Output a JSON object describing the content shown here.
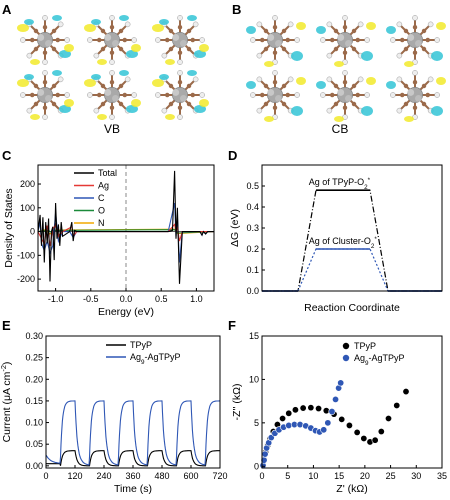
{
  "panels": {
    "A": {
      "label": "A",
      "caption": "VB"
    },
    "B": {
      "label": "B",
      "caption": "CB"
    },
    "C": {
      "label": "C"
    },
    "D": {
      "label": "D"
    },
    "E": {
      "label": "E"
    },
    "F": {
      "label": "F"
    }
  },
  "colors": {
    "black": "#000000",
    "red": "#e53935",
    "blue": "#2f57b5",
    "green": "#1b8a3a",
    "orange": "#f2a900",
    "yellow": "#f2ea2a",
    "cyan": "#33c4d6",
    "atom_c": "#9b6a4a",
    "atom_ag": "#a9a9a9"
  },
  "chart_data": [
    {
      "panel": "C",
      "type": "line",
      "xlabel": "Energy (eV)",
      "ylabel": "Density of States",
      "xlim": [
        -1.25,
        1.25
      ],
      "ylim": [
        -250,
        280
      ],
      "xticks": [
        -1.0,
        -0.5,
        0.0,
        0.5,
        1.0
      ],
      "xticklabels": [
        "-1.0",
        "-0.5",
        "0.0",
        "0.5",
        "1.0"
      ],
      "yticks": [
        -200,
        -100,
        0,
        100,
        200
      ],
      "yticklabels": [
        "-200",
        "-100",
        "0",
        "100",
        "200"
      ],
      "legend": [
        "Total",
        "Ag",
        "C",
        "O",
        "N"
      ],
      "fermi_level": 0.0,
      "series": [
        {
          "name": "Total",
          "color": "#000000",
          "x": [
            -1.25,
            -1.22,
            -1.2,
            -1.18,
            -1.16,
            -1.14,
            -1.12,
            -1.1,
            -1.08,
            -1.06,
            -1.04,
            -1.02,
            -1.0,
            -0.98,
            -0.96,
            -0.94,
            -0.92,
            -0.9,
            -0.8,
            -0.77,
            -0.75,
            -0.73,
            -0.7,
            0.6,
            0.66,
            0.69,
            0.71,
            0.73,
            0.76,
            0.8,
            1.05,
            1.08,
            1.1,
            1.13,
            1.16,
            1.25
          ],
          "y": [
            0,
            70,
            -60,
            60,
            -130,
            40,
            -50,
            55,
            -210,
            0,
            20,
            -120,
            120,
            -30,
            30,
            -60,
            40,
            -20,
            0,
            40,
            -40,
            5,
            0,
            0,
            5,
            255,
            -30,
            100,
            -220,
            0,
            0,
            -15,
            0,
            -10,
            0,
            0
          ]
        },
        {
          "name": "Ag",
          "color": "#e53935",
          "x": [
            -1.25,
            -1.2,
            -1.16,
            -1.12,
            -1.08,
            -1.04,
            -1.0,
            -0.96,
            -0.9,
            -0.77,
            -0.75,
            -0.7,
            0.6,
            0.69,
            0.71,
            0.73,
            0.76,
            0.8,
            1.25
          ],
          "y": [
            0,
            -30,
            -50,
            25,
            -60,
            10,
            30,
            -20,
            0,
            20,
            -20,
            0,
            0,
            30,
            0,
            15,
            -40,
            0,
            0
          ]
        },
        {
          "name": "C",
          "color": "#2f57b5",
          "x": [
            -1.25,
            -1.22,
            -1.2,
            -1.16,
            -1.12,
            -1.08,
            -1.04,
            -1.0,
            -0.96,
            -0.9,
            -0.8,
            -0.75,
            -0.7,
            0.6,
            0.69,
            0.71,
            0.73,
            0.76,
            0.8,
            1.05,
            1.08,
            1.1,
            1.13,
            1.16,
            1.25
          ],
          "y": [
            0,
            40,
            -50,
            -80,
            -40,
            -90,
            -60,
            80,
            -40,
            0,
            0,
            -25,
            0,
            0,
            120,
            -20,
            60,
            -130,
            0,
            0,
            -15,
            0,
            -10,
            0,
            0
          ]
        },
        {
          "name": "O",
          "color": "#1b8a3a",
          "x": [
            -1.25,
            -1.1,
            -1.05,
            -1.0,
            0.69,
            0.73,
            1.25
          ],
          "y": [
            0,
            5,
            -5,
            5,
            8,
            -6,
            0
          ]
        },
        {
          "name": "N",
          "color": "#f2a900",
          "x": [
            -1.25,
            -1.15,
            -1.08,
            -1.0,
            0.69,
            0.73,
            1.25
          ],
          "y": [
            0,
            8,
            -10,
            6,
            10,
            -8,
            0
          ]
        }
      ]
    },
    {
      "panel": "D",
      "type": "line",
      "xlabel": "Reaction Coordinate",
      "ylabel": "ΔG (eV)",
      "xlim": [
        0,
        10
      ],
      "ylim": [
        0,
        0.6
      ],
      "yticks": [
        0.0,
        0.1,
        0.2,
        0.3,
        0.4,
        0.5
      ],
      "yticklabels": [
        "0.0",
        "0.1",
        "0.2",
        "0.3",
        "0.4",
        "0.5"
      ],
      "series": [
        {
          "name": "Ag of TPyP-O2*",
          "label_main": "Ag of TPyP-O",
          "label_sub": "2",
          "label_sup": "*",
          "color": "#000000",
          "x": [
            0,
            2,
            3,
            6,
            7,
            10
          ],
          "y": [
            0,
            0,
            0.48,
            0.48,
            0,
            0
          ]
        },
        {
          "name": "Ag of Cluster-O2*",
          "label_main": "Ag of Cluster-O",
          "label_sub": "2",
          "label_sup": "*",
          "color": "#2f57b5",
          "x": [
            0,
            2,
            3,
            6,
            7,
            10
          ],
          "y": [
            0,
            0,
            0.2,
            0.2,
            0,
            0
          ]
        }
      ]
    },
    {
      "panel": "E",
      "type": "line",
      "xlabel": "Time (s)",
      "ylabel_main": "Current (μA cm",
      "ylabel_sup": "-2",
      "ylabel_end": ")",
      "xlim": [
        0,
        720
      ],
      "ylim": [
        -0.005,
        0.3
      ],
      "xticks": [
        0,
        120,
        240,
        360,
        480,
        600,
        720
      ],
      "xticklabels": [
        "0",
        "120",
        "240",
        "360",
        "480",
        "600",
        "720"
      ],
      "yticks": [
        0.0,
        0.05,
        0.1,
        0.15,
        0.2,
        0.25,
        0.3
      ],
      "yticklabels": [
        "0.00",
        "0.05",
        "0.10",
        "0.15",
        "0.20",
        "0.25",
        "0.30"
      ],
      "series": [
        {
          "name": "TPyP",
          "color": "#000000",
          "on_level": 0.035,
          "off_level": 0.0,
          "base": 0.005
        },
        {
          "name": "Ag9-AgTPyP",
          "label_main": "Ag",
          "label_sub": "9",
          "label_end": "-AgTPyP",
          "color": "#2f57b5",
          "on_level": 0.15,
          "off_level": 0.02,
          "base": 0.005
        }
      ],
      "light_on_s": [
        60,
        180,
        300,
        420,
        540,
        660
      ],
      "period_s": 120
    },
    {
      "panel": "F",
      "type": "scatter",
      "xlabel": "Z' (kΩ)",
      "ylabel": "-Z'' (kΩ)",
      "xlim": [
        0,
        35
      ],
      "ylim": [
        -0.2,
        15
      ],
      "xticks": [
        0,
        5,
        10,
        15,
        20,
        25,
        30,
        35
      ],
      "xticklabels": [
        "0",
        "5",
        "10",
        "15",
        "20",
        "25",
        "30",
        "35"
      ],
      "yticks": [
        0,
        5,
        10,
        15
      ],
      "yticklabels": [
        "0",
        "5",
        "10",
        "15"
      ],
      "series": [
        {
          "name": "TPyP",
          "color": "#000000",
          "x": [
            0.2,
            0.4,
            0.7,
            1.1,
            1.6,
            2.2,
            3.0,
            4.0,
            5.2,
            6.5,
            8.0,
            9.5,
            11.0,
            12.5,
            14.0,
            15.5,
            17.0,
            18.5,
            19.8,
            21.0,
            22.0,
            23.2,
            24.6,
            26.2,
            28.0
          ],
          "y": [
            0.1,
            0.8,
            1.6,
            2.4,
            3.2,
            4.0,
            4.8,
            5.5,
            6.1,
            6.5,
            6.7,
            6.75,
            6.65,
            6.4,
            6.0,
            5.4,
            4.7,
            3.9,
            3.2,
            2.8,
            3.0,
            4.0,
            5.5,
            7.0,
            8.6
          ]
        },
        {
          "name": "Ag9-AgTPyP",
          "label_main": "Ag",
          "label_sub": "9",
          "label_end": "-AgTPyP",
          "color": "#2f57b5",
          "x": [
            0.2,
            0.4,
            0.6,
            0.9,
            1.3,
            1.8,
            2.5,
            3.3,
            4.2,
            5.2,
            6.3,
            7.4,
            8.5,
            9.5,
            10.4,
            11.2,
            12.0,
            12.8,
            13.6,
            14.3,
            14.9,
            15.3
          ],
          "y": [
            0.1,
            0.7,
            1.4,
            2.1,
            2.7,
            3.3,
            3.8,
            4.2,
            4.5,
            4.7,
            4.8,
            4.8,
            4.65,
            4.4,
            4.1,
            3.95,
            4.2,
            5.0,
            6.3,
            7.7,
            9.0,
            9.6
          ]
        }
      ]
    }
  ]
}
